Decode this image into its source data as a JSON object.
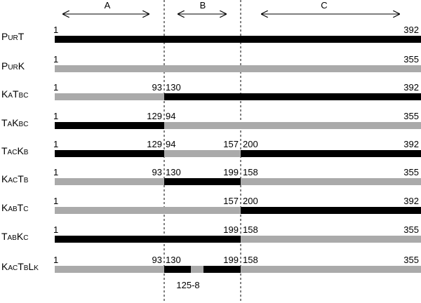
{
  "regions": [
    "A",
    "B",
    "C"
  ],
  "rows": [
    {
      "name": "PurT",
      "labels": [
        "1",
        "392"
      ]
    },
    {
      "name": "PurK",
      "labels": [
        "1",
        "355"
      ]
    },
    {
      "name": "KaTbc",
      "labels": [
        "1",
        "93",
        "130",
        "392"
      ]
    },
    {
      "name": "TaKbc",
      "labels": [
        "1",
        "129",
        "94",
        "355"
      ]
    },
    {
      "name": "TacKb",
      "labels": [
        "1",
        "129",
        "94",
        "157",
        "200",
        "392"
      ]
    },
    {
      "name": "KacTb",
      "labels": [
        "1",
        "93",
        "130",
        "199",
        "158",
        "355"
      ]
    },
    {
      "name": "KabTc",
      "labels": [
        "1",
        "157",
        "200",
        "392"
      ]
    },
    {
      "name": "TabKc",
      "labels": [
        "1",
        "199",
        "158",
        "355"
      ]
    },
    {
      "name": "KacTbLk",
      "labels": [
        "1",
        "93",
        "130",
        "199",
        "158",
        "355"
      ],
      "note": "125-8"
    }
  ]
}
